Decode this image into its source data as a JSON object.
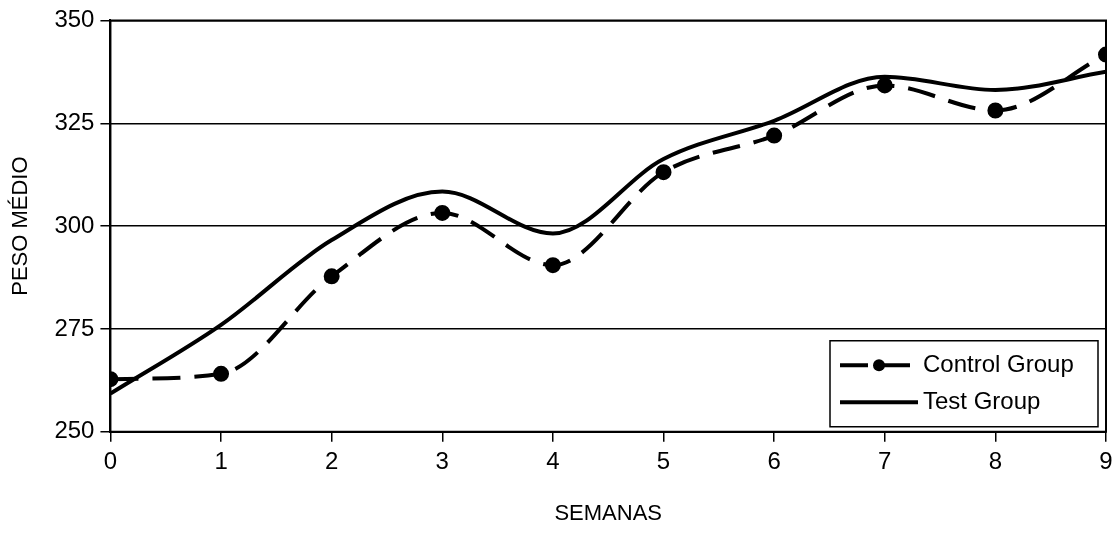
{
  "chart_data": {
    "type": "line",
    "xlabel": "SEMANAS",
    "ylabel": "PESO MÉDIO",
    "x": [
      0,
      1,
      2,
      3,
      4,
      5,
      6,
      7,
      8,
      9
    ],
    "xlim": [
      0,
      9
    ],
    "xticks": [
      0,
      1,
      2,
      3,
      4,
      5,
      6,
      7,
      8,
      9
    ],
    "ylim": [
      250,
      350
    ],
    "yticks": [
      250,
      275,
      300,
      325,
      350
    ],
    "grid": "y",
    "legend": "bottom right",
    "series": [
      {
        "name": "Control Group",
        "color": "#000000",
        "marker": "circle",
        "line_style": "dashed",
        "values": [
          262.8,
          264.1,
          287.8,
          303.2,
          290.5,
          313.1,
          322,
          334.2,
          328.1,
          341.7
        ]
      },
      {
        "name": "Test Group",
        "color": "#000000",
        "marker": "none",
        "line_style": "solid",
        "values": [
          259.3,
          276,
          296.6,
          308.4,
          298.2,
          316.3,
          325.6,
          336.3,
          333.1,
          337.5
        ]
      }
    ]
  }
}
